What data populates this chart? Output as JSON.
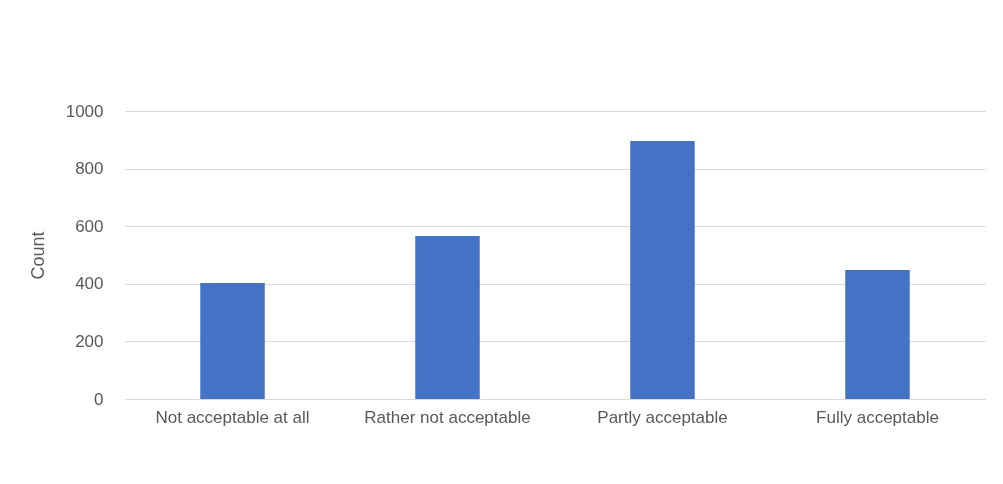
{
  "chart_data": {
    "type": "bar",
    "ylabel": "Count",
    "categories": [
      "Not acceptable at all",
      "Rather not acceptable",
      "Partly acceptable",
      "Fully acceptable"
    ],
    "values": [
      403,
      566,
      896,
      448
    ],
    "color": "#4472c4",
    "ylim": [
      0,
      1000
    ],
    "yticks": [
      0,
      200,
      400,
      600,
      800,
      1000
    ],
    "grid": "y"
  }
}
